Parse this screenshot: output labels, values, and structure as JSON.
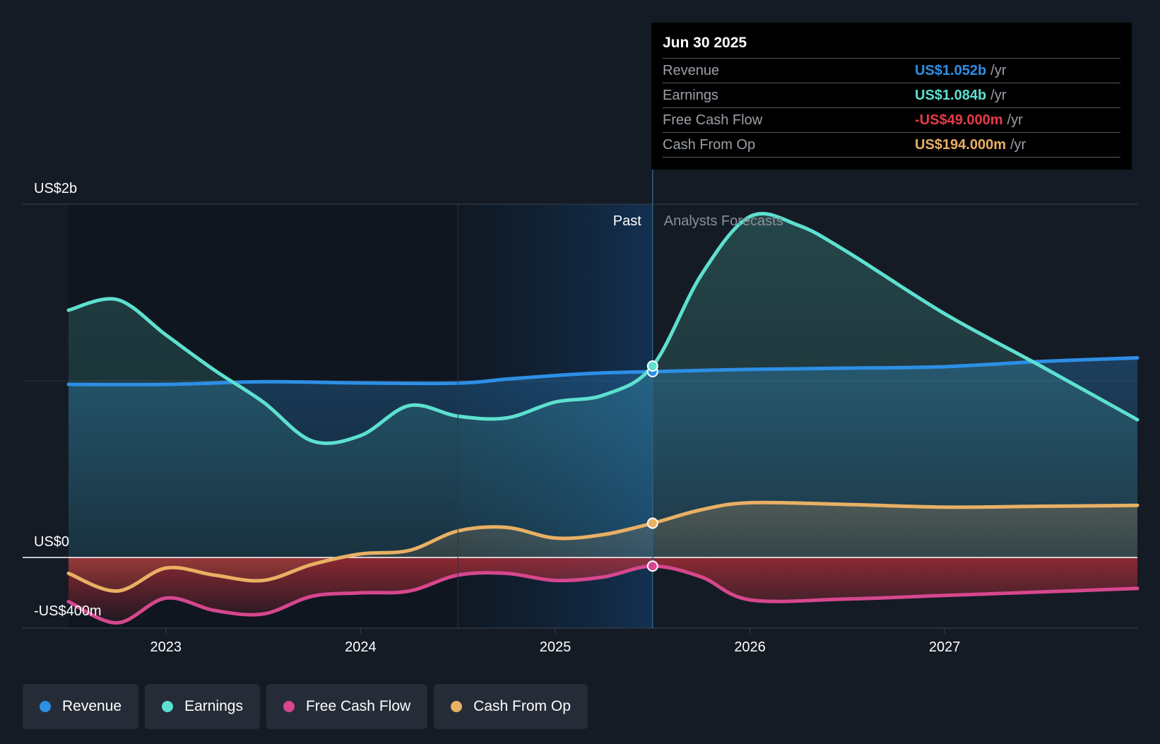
{
  "chart_data": {
    "type": "line",
    "x_ticks": [
      "2023",
      "2024",
      "2025",
      "2026",
      "2027"
    ],
    "y_labels": {
      "top": "US$2b",
      "zero": "US$0",
      "bottom": "-US$400m"
    },
    "ylim": [
      -400,
      2000
    ],
    "xlim": [
      2022.5,
      2027.99
    ],
    "divider_date": 2025.5,
    "past_label": "Past",
    "forecast_label": "Analysts Forecasts",
    "series": [
      {
        "name": "Revenue",
        "color": "#2d8fe6",
        "points": [
          [
            2022.5,
            980
          ],
          [
            2023.0,
            980
          ],
          [
            2023.5,
            995
          ],
          [
            2024.0,
            988
          ],
          [
            2024.5,
            987
          ],
          [
            2024.75,
            1010
          ],
          [
            2025.0,
            1030
          ],
          [
            2025.25,
            1045
          ],
          [
            2025.5,
            1052
          ],
          [
            2026.0,
            1065
          ],
          [
            2026.5,
            1072
          ],
          [
            2027.0,
            1080
          ],
          [
            2027.5,
            1110
          ],
          [
            2027.99,
            1130
          ]
        ]
      },
      {
        "name": "Earnings",
        "color": "#5de0cf",
        "points": [
          [
            2022.5,
            1400
          ],
          [
            2022.75,
            1460
          ],
          [
            2023.0,
            1260
          ],
          [
            2023.25,
            1060
          ],
          [
            2023.5,
            880
          ],
          [
            2023.75,
            660
          ],
          [
            2024.0,
            690
          ],
          [
            2024.25,
            860
          ],
          [
            2024.5,
            800
          ],
          [
            2024.75,
            790
          ],
          [
            2025.0,
            880
          ],
          [
            2025.25,
            920
          ],
          [
            2025.5,
            1084
          ],
          [
            2025.75,
            1600
          ],
          [
            2026.0,
            1930
          ],
          [
            2026.25,
            1880
          ],
          [
            2026.5,
            1730
          ],
          [
            2027.0,
            1380
          ],
          [
            2027.5,
            1080
          ],
          [
            2027.99,
            780
          ]
        ]
      },
      {
        "name": "Free Cash Flow",
        "color": "#d6478e",
        "points": [
          [
            2022.5,
            -250
          ],
          [
            2022.75,
            -370
          ],
          [
            2023.0,
            -230
          ],
          [
            2023.25,
            -300
          ],
          [
            2023.5,
            -320
          ],
          [
            2023.75,
            -220
          ],
          [
            2024.0,
            -200
          ],
          [
            2024.25,
            -190
          ],
          [
            2024.5,
            -100
          ],
          [
            2024.75,
            -90
          ],
          [
            2025.0,
            -130
          ],
          [
            2025.25,
            -110
          ],
          [
            2025.5,
            -49
          ],
          [
            2025.75,
            -110
          ],
          [
            2026.0,
            -240
          ],
          [
            2026.5,
            -235
          ],
          [
            2027.0,
            -215
          ],
          [
            2027.5,
            -195
          ],
          [
            2027.99,
            -175
          ]
        ]
      },
      {
        "name": "Cash From Op",
        "color": "#e9b064",
        "points": [
          [
            2022.5,
            -90
          ],
          [
            2022.75,
            -190
          ],
          [
            2023.0,
            -60
          ],
          [
            2023.25,
            -100
          ],
          [
            2023.5,
            -130
          ],
          [
            2023.75,
            -40
          ],
          [
            2024.0,
            20
          ],
          [
            2024.25,
            40
          ],
          [
            2024.5,
            150
          ],
          [
            2024.75,
            170
          ],
          [
            2025.0,
            110
          ],
          [
            2025.25,
            130
          ],
          [
            2025.5,
            194
          ],
          [
            2025.75,
            270
          ],
          [
            2026.0,
            310
          ],
          [
            2026.5,
            300
          ],
          [
            2027.0,
            285
          ],
          [
            2027.5,
            290
          ],
          [
            2027.99,
            295
          ]
        ]
      }
    ]
  },
  "tooltip": {
    "date": "Jun 30 2025",
    "rows": [
      {
        "label": "Revenue",
        "value": "US$1.052b",
        "unit": "/yr",
        "color": "#2d8fe6"
      },
      {
        "label": "Earnings",
        "value": "US$1.084b",
        "unit": "/yr",
        "color": "#5de0cf"
      },
      {
        "label": "Free Cash Flow",
        "value": "-US$49.000m",
        "unit": "/yr",
        "color": "#e63b46"
      },
      {
        "label": "Cash From Op",
        "value": "US$194.000m",
        "unit": "/yr",
        "color": "#e9b064"
      }
    ]
  },
  "legend": [
    {
      "label": "Revenue",
      "color": "#2d8fe6"
    },
    {
      "label": "Earnings",
      "color": "#5de0cf"
    },
    {
      "label": "Free Cash Flow",
      "color": "#d6478e"
    },
    {
      "label": "Cash From Op",
      "color": "#e9b064"
    }
  ]
}
